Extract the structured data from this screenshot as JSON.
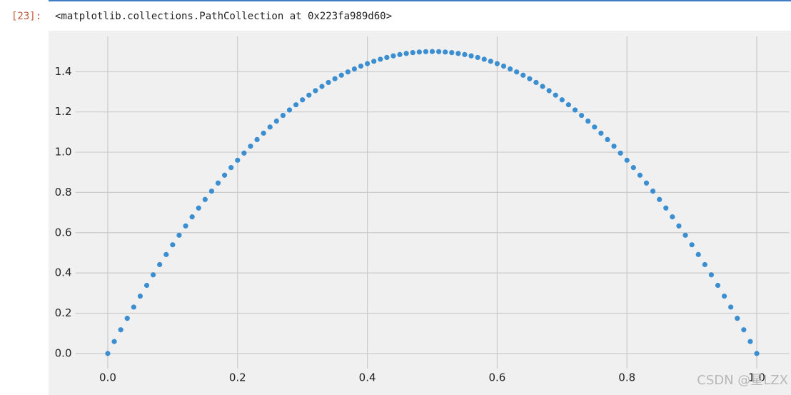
{
  "cell": {
    "prompt": "[23]:",
    "output": "<matplotlib.collections.PathCollection at 0x223fa989d60>"
  },
  "watermark": "CSDN @星LZX",
  "chart_data": {
    "type": "scatter",
    "color": "#3b8ed0",
    "grid": true,
    "xlim": [
      -0.05,
      1.05
    ],
    "ylim": [
      -0.075,
      1.575
    ],
    "xticks": [
      {
        "value": 0,
        "label": "0.0"
      },
      0.2,
      0.4,
      0.6,
      0.8,
      {
        "value": 1,
        "label": "1.0"
      }
    ],
    "yticks": [
      {
        "value": 0,
        "label": "0.0"
      },
      0.2,
      0.4,
      0.6,
      0.8,
      {
        "value": 1,
        "label": "1.0"
      },
      1.2,
      1.4
    ],
    "x": [
      0,
      0.01,
      0.02,
      0.03,
      0.04,
      0.05,
      0.06,
      0.07,
      0.08,
      0.09,
      0.1,
      0.11,
      0.12,
      0.13,
      0.14,
      0.15,
      0.16,
      0.17,
      0.18,
      0.19,
      0.2,
      0.21,
      0.22,
      0.23,
      0.24,
      0.25,
      0.26,
      0.27,
      0.28,
      0.29,
      0.3,
      0.31,
      0.32,
      0.33,
      0.34,
      0.35,
      0.36,
      0.37,
      0.38,
      0.39,
      0.4,
      0.41,
      0.42,
      0.43,
      0.44,
      0.45,
      0.46,
      0.47,
      0.48,
      0.49,
      0.5,
      0.51,
      0.52,
      0.53,
      0.54,
      0.55,
      0.56,
      0.57,
      0.58,
      0.59,
      0.6,
      0.61,
      0.62,
      0.63,
      0.64,
      0.65,
      0.66,
      0.67,
      0.68,
      0.69,
      0.7,
      0.71,
      0.72,
      0.73,
      0.74,
      0.75,
      0.76,
      0.77,
      0.78,
      0.79,
      0.8,
      0.81,
      0.82,
      0.83,
      0.84,
      0.85,
      0.86,
      0.87,
      0.88,
      0.89,
      0.9,
      0.91,
      0.92,
      0.93,
      0.94,
      0.95,
      0.96,
      0.97,
      0.98,
      0.99,
      1
    ],
    "values": [
      0,
      0.0594,
      0.1176,
      0.1746,
      0.2304,
      0.285,
      0.3384,
      0.3906,
      0.4416,
      0.4914,
      0.54,
      0.5874,
      0.6336,
      0.6786,
      0.7224,
      0.765,
      0.8064,
      0.8466,
      0.8856,
      0.9234,
      0.96,
      0.9954,
      1.0296,
      1.0626,
      1.0944,
      1.125,
      1.1544,
      1.1826,
      1.2096,
      1.2354,
      1.26,
      1.2834,
      1.3056,
      1.3266,
      1.3464,
      1.365,
      1.3824,
      1.3986,
      1.4136,
      1.4274,
      1.44,
      1.4514,
      1.4616,
      1.4706,
      1.4784,
      1.485,
      1.4904,
      1.4946,
      1.4976,
      1.4994,
      1.5,
      1.4994,
      1.4976,
      1.4946,
      1.4904,
      1.485,
      1.4784,
      1.4706,
      1.4616,
      1.4514,
      1.44,
      1.4274,
      1.4136,
      1.3986,
      1.3824,
      1.365,
      1.3464,
      1.3266,
      1.3056,
      1.2834,
      1.26,
      1.2354,
      1.2096,
      1.1826,
      1.1544,
      1.125,
      1.0944,
      1.0626,
      1.0296,
      0.9954,
      0.96,
      0.9234,
      0.8856,
      0.8466,
      0.8064,
      0.765,
      0.7224,
      0.6786,
      0.6336,
      0.5874,
      0.54,
      0.4914,
      0.4416,
      0.3906,
      0.3384,
      0.285,
      0.2304,
      0.1746,
      0.1176,
      0.0594,
      0
    ]
  }
}
